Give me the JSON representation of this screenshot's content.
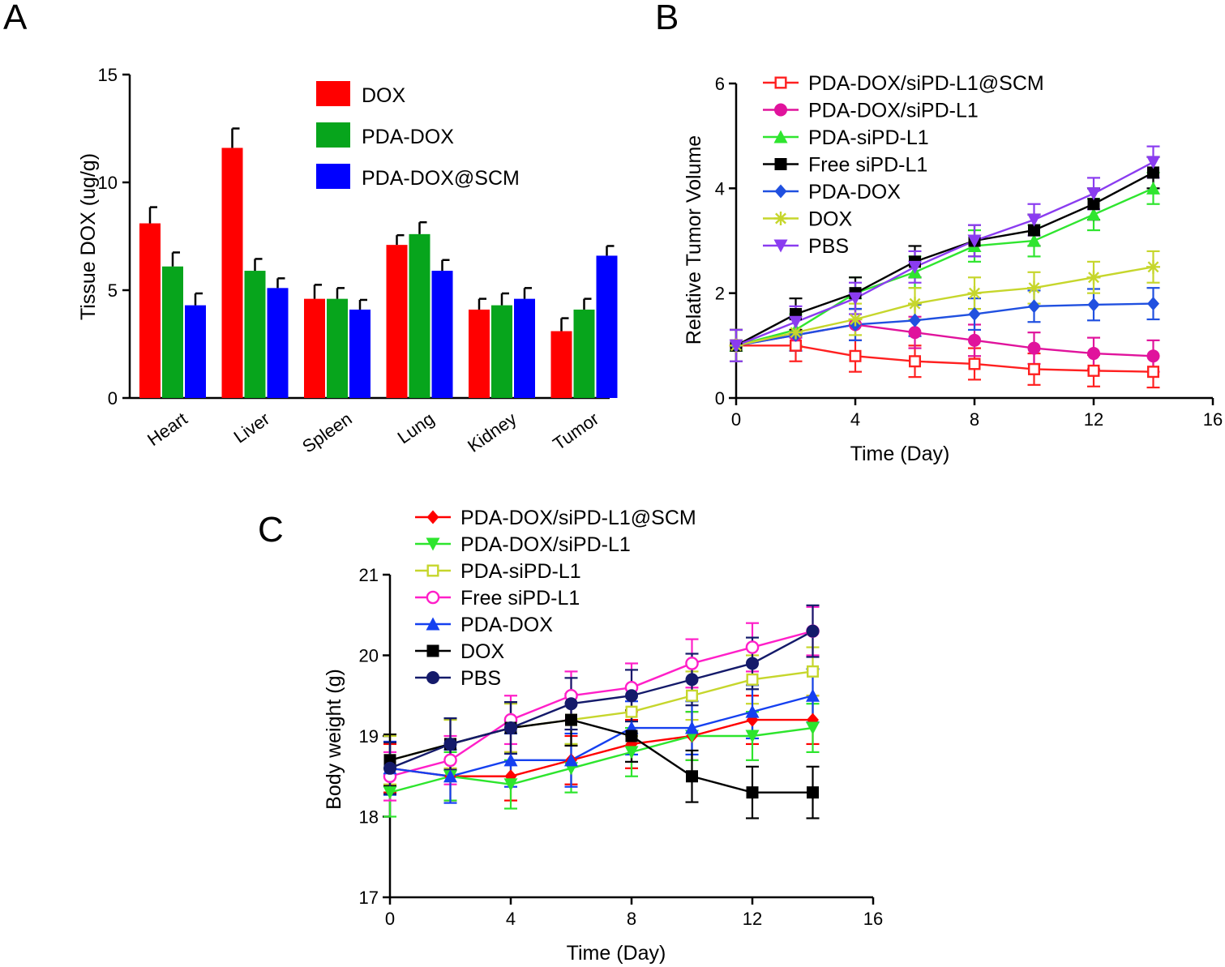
{
  "panels": [
    {
      "letter": "A"
    },
    {
      "letter": "B"
    },
    {
      "letter": "C"
    }
  ],
  "chart_data": [
    {
      "type": "bar",
      "panel": "A",
      "ylabel": "Tissue DOX (ug/g)",
      "xlabel": "",
      "ylim": [
        0,
        15
      ],
      "yticks": [
        0,
        5,
        10,
        15
      ],
      "categories": [
        "Heart",
        "Liver",
        "Spleen",
        "Lung",
        "Kidney",
        "Tumor"
      ],
      "legend_position": "top-right",
      "series": [
        {
          "name": "DOX",
          "color": "#ff0000",
          "values": [
            8.1,
            11.6,
            4.6,
            7.1,
            4.1,
            3.1
          ],
          "errors": [
            0.75,
            0.9,
            0.65,
            0.45,
            0.5,
            0.6
          ]
        },
        {
          "name": "PDA-DOX",
          "color": "#07a51c",
          "values": [
            6.1,
            5.9,
            4.6,
            7.6,
            4.3,
            4.1
          ],
          "errors": [
            0.65,
            0.55,
            0.5,
            0.55,
            0.55,
            0.5
          ]
        },
        {
          "name": "PDA-DOX@SCM",
          "color": "#0000ff",
          "values": [
            4.3,
            5.1,
            4.1,
            5.9,
            4.6,
            6.6
          ],
          "errors": [
            0.55,
            0.45,
            0.45,
            0.5,
            0.5,
            0.45
          ]
        }
      ]
    },
    {
      "type": "line",
      "panel": "B",
      "xlabel": "Time (Day)",
      "ylabel": "Relative Tumor Volume",
      "xlim": [
        0,
        16
      ],
      "ylim": [
        0,
        6
      ],
      "xticks": [
        0,
        4,
        8,
        12,
        16
      ],
      "yticks": [
        0,
        2,
        4,
        6
      ],
      "x": [
        0,
        2,
        4,
        6,
        8,
        10,
        12,
        14
      ],
      "legend_position": "top-left",
      "series": [
        {
          "name": "PDA-DOX/siPD-L1@SCM",
          "color": "#ff2020",
          "marker": "square-open",
          "values": [
            1.0,
            1.0,
            0.8,
            0.7,
            0.65,
            0.55,
            0.52,
            0.5
          ],
          "error": 0.3
        },
        {
          "name": "PDA-DOX/siPD-L1",
          "color": "#e0139c",
          "marker": "circle",
          "values": [
            1.0,
            1.2,
            1.4,
            1.25,
            1.1,
            0.95,
            0.85,
            0.8
          ],
          "error": 0.3
        },
        {
          "name": "PDA-siPD-L1",
          "color": "#2fe52f",
          "marker": "triangle-up",
          "values": [
            1.0,
            1.3,
            2.0,
            2.4,
            2.9,
            3.0,
            3.5,
            4.0
          ],
          "error": 0.3
        },
        {
          "name": "Free siPD-L1",
          "color": "#000000",
          "marker": "square",
          "values": [
            1.0,
            1.6,
            2.0,
            2.6,
            3.0,
            3.2,
            3.7,
            4.3
          ],
          "error": 0.3
        },
        {
          "name": "PDA-DOX",
          "color": "#2050e0",
          "marker": "diamond",
          "values": [
            1.0,
            1.2,
            1.4,
            1.48,
            1.6,
            1.75,
            1.78,
            1.8
          ],
          "error": 0.3
        },
        {
          "name": "DOX",
          "color": "#c6d62c",
          "marker": "asterisk",
          "values": [
            1.0,
            1.25,
            1.5,
            1.8,
            2.0,
            2.1,
            2.3,
            2.5
          ],
          "error": 0.3
        },
        {
          "name": "PBS",
          "color": "#8a3cf0",
          "marker": "triangle-down",
          "values": [
            1.0,
            1.45,
            1.9,
            2.5,
            3.0,
            3.4,
            3.9,
            4.5
          ],
          "error": 0.3
        }
      ]
    },
    {
      "type": "line",
      "panel": "C",
      "xlabel": "Time (Day)",
      "ylabel": "Body weight (g)",
      "xlim": [
        0,
        16
      ],
      "ylim": [
        17,
        21
      ],
      "xticks": [
        0,
        4,
        8,
        12,
        16
      ],
      "yticks": [
        17,
        18,
        19,
        20,
        21
      ],
      "x": [
        0,
        2,
        4,
        6,
        8,
        10,
        12,
        14
      ],
      "legend_position": "top-left",
      "series": [
        {
          "name": "PDA-DOX/siPD-L1@SCM",
          "color": "#ff0000",
          "marker": "diamond",
          "values": [
            18.6,
            18.5,
            18.5,
            18.7,
            18.9,
            19.0,
            19.2,
            19.2
          ],
          "error": 0.3
        },
        {
          "name": "PDA-DOX/siPD-L1",
          "color": "#2de52d",
          "marker": "triangle-down",
          "values": [
            18.3,
            18.5,
            18.4,
            18.6,
            18.8,
            19.0,
            19.0,
            19.1
          ],
          "error": 0.3
        },
        {
          "name": "PDA-siPD-L1",
          "color": "#c6d62c",
          "marker": "square-open",
          "values": [
            18.7,
            18.9,
            19.1,
            19.2,
            19.3,
            19.5,
            19.7,
            19.8
          ],
          "error": 0.3
        },
        {
          "name": "Free siPD-L1",
          "color": "#ff1fc8",
          "marker": "circle-open",
          "values": [
            18.5,
            18.7,
            19.2,
            19.5,
            19.6,
            19.9,
            20.1,
            20.3
          ],
          "error": 0.3
        },
        {
          "name": "PDA-DOX",
          "color": "#1540f0",
          "marker": "triangle-up",
          "values": [
            18.6,
            18.5,
            18.7,
            18.7,
            19.1,
            19.1,
            19.3,
            19.5
          ],
          "error": 0.33
        },
        {
          "name": "DOX",
          "color": "#000000",
          "marker": "square",
          "values": [
            18.7,
            18.9,
            19.1,
            19.2,
            19.0,
            18.5,
            18.3,
            18.3
          ],
          "error": 0.32
        },
        {
          "name": "PBS",
          "color": "#141a6a",
          "marker": "circle",
          "values": [
            18.6,
            18.9,
            19.1,
            19.4,
            19.5,
            19.7,
            19.9,
            20.3
          ],
          "error": 0.32
        }
      ]
    }
  ]
}
